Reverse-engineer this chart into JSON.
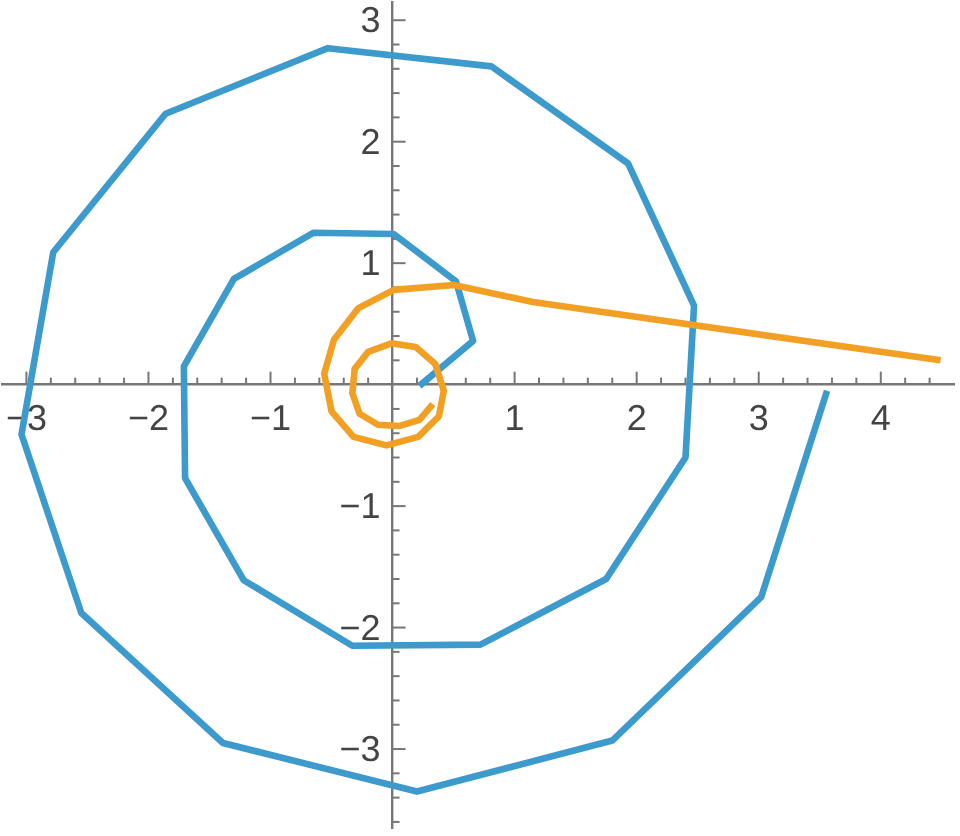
{
  "chart_data": {
    "type": "line",
    "marker": "none",
    "line_style": "solid",
    "xlim": [
      -3.2,
      4.6
    ],
    "ylim": [
      -3.65,
      3.15
    ],
    "xticks": [
      {
        "value": -3,
        "label": "−3"
      },
      {
        "value": -2.8,
        "label": null
      },
      {
        "value": -2.6,
        "label": null
      },
      {
        "value": -2.4,
        "label": null
      },
      {
        "value": -2.2,
        "label": null
      },
      {
        "value": -2,
        "label": "−2"
      },
      {
        "value": -1.8,
        "label": null
      },
      {
        "value": -1.6,
        "label": null
      },
      {
        "value": -1.4,
        "label": null
      },
      {
        "value": -1.2,
        "label": null
      },
      {
        "value": -1,
        "label": "−1"
      },
      {
        "value": -0.8,
        "label": null
      },
      {
        "value": -0.6,
        "label": null
      },
      {
        "value": -0.4,
        "label": null
      },
      {
        "value": -0.2,
        "label": null
      },
      {
        "value": 0.2,
        "label": null
      },
      {
        "value": 0.4,
        "label": null
      },
      {
        "value": 0.6,
        "label": null
      },
      {
        "value": 0.8,
        "label": null
      },
      1,
      {
        "value": 1.2,
        "label": null
      },
      {
        "value": 1.4,
        "label": null
      },
      {
        "value": 1.6,
        "label": null
      },
      {
        "value": 1.8,
        "label": null
      },
      2,
      {
        "value": 2.2,
        "label": null
      },
      {
        "value": 2.4,
        "label": null
      },
      {
        "value": 2.6,
        "label": null
      },
      {
        "value": 2.8,
        "label": null
      },
      3,
      {
        "value": 3.2,
        "label": null
      },
      {
        "value": 3.4,
        "label": null
      },
      {
        "value": 3.6,
        "label": null
      },
      {
        "value": 3.8,
        "label": null
      },
      4,
      {
        "value": 4.2,
        "label": null
      },
      {
        "value": 4.4,
        "label": null
      }
    ],
    "yticks": [
      {
        "value": -3.6,
        "label": null
      },
      {
        "value": -3.4,
        "label": null
      },
      {
        "value": -3.2,
        "label": null
      },
      {
        "value": -3,
        "label": "−3"
      },
      {
        "value": -2.8,
        "label": null
      },
      {
        "value": -2.6,
        "label": null
      },
      {
        "value": -2.4,
        "label": null
      },
      {
        "value": -2.2,
        "label": null
      },
      {
        "value": -2,
        "label": "−2"
      },
      {
        "value": -1.8,
        "label": null
      },
      {
        "value": -1.6,
        "label": null
      },
      {
        "value": -1.4,
        "label": null
      },
      {
        "value": -1.2,
        "label": null
      },
      {
        "value": -1,
        "label": "−1"
      },
      {
        "value": -0.8,
        "label": null
      },
      {
        "value": -0.6,
        "label": null
      },
      {
        "value": -0.4,
        "label": null
      },
      {
        "value": -0.2,
        "label": null
      },
      {
        "value": 0.2,
        "label": null
      },
      {
        "value": 0.4,
        "label": null
      },
      {
        "value": 0.6,
        "label": null
      },
      {
        "value": 0.8,
        "label": null
      },
      1,
      {
        "value": 1.2,
        "label": null
      },
      {
        "value": 1.4,
        "label": null
      },
      {
        "value": 1.6,
        "label": null
      },
      {
        "value": 1.8,
        "label": null
      },
      2,
      {
        "value": 2.2,
        "label": null
      },
      {
        "value": 2.4,
        "label": null
      },
      {
        "value": 2.6,
        "label": null
      },
      {
        "value": 2.8,
        "label": null
      },
      3
    ],
    "series": [
      {
        "color": "#3d9acc",
        "x": [
          0.22,
          0.66,
          0.52,
          0.01,
          -0.65,
          -1.3,
          -1.71,
          -1.7,
          -1.22,
          -0.33,
          0.72,
          1.75,
          2.4,
          2.47,
          1.93,
          0.81,
          -0.53,
          -1.86,
          -2.78,
          -3.04,
          -2.55,
          -1.39,
          0.2,
          1.8,
          3.02,
          3.56
        ],
        "values": [
          -0.01,
          0.36,
          0.85,
          1.24,
          1.25,
          0.87,
          0.15,
          -0.77,
          -1.61,
          -2.15,
          -2.14,
          -1.6,
          -0.6,
          0.65,
          1.82,
          2.62,
          2.77,
          2.23,
          1.09,
          -0.41,
          -1.88,
          -2.95,
          -3.35,
          -2.93,
          -1.75,
          -0.05
        ]
      },
      {
        "color": "#f2a024",
        "x": [
          4.49,
          1.15,
          0.5,
          0.01,
          -0.28,
          -0.48,
          -0.56,
          -0.5,
          -0.32,
          -0.05,
          0.21,
          0.38,
          0.42,
          0.35,
          0.19,
          -0.01,
          -0.2,
          -0.31,
          -0.33,
          -0.27,
          -0.12,
          0.06,
          0.22,
          0.33
        ],
        "values": [
          0.2,
          0.68,
          0.82,
          0.78,
          0.63,
          0.37,
          0.09,
          -0.22,
          -0.43,
          -0.5,
          -0.43,
          -0.26,
          -0.05,
          0.17,
          0.31,
          0.34,
          0.27,
          0.13,
          -0.07,
          -0.24,
          -0.33,
          -0.34,
          -0.29,
          -0.16
        ]
      }
    ]
  }
}
